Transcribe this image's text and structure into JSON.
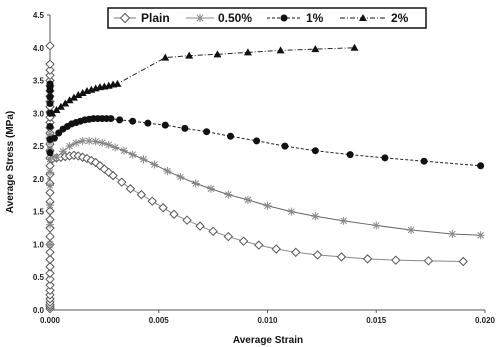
{
  "chart_data": {
    "type": "scatter",
    "title": "",
    "xlabel": "Average Strain",
    "ylabel": "Average Stress (MPa)",
    "xlim": [
      0,
      0.02
    ],
    "ylim": [
      0,
      4.5
    ],
    "xticks": [
      "0.000",
      "0.005",
      "0.010",
      "0.015",
      "0.020"
    ],
    "yticks": [
      "0.0",
      "0.5",
      "1.0",
      "1.5",
      "2.0",
      "2.5",
      "3.0",
      "3.5",
      "4.0",
      "4.5"
    ],
    "grid": false,
    "legend_position": "top",
    "series": [
      {
        "name": "Plain",
        "marker": "diamond-open",
        "color": "#555555",
        "x": [
          0,
          0,
          0,
          0,
          0,
          0,
          0,
          0,
          0,
          0,
          0,
          0,
          0,
          0,
          0,
          0,
          0,
          0,
          0,
          0,
          0,
          0,
          0,
          0,
          0,
          0,
          0,
          0,
          0,
          0,
          0,
          0,
          0,
          0,
          0,
          0,
          0,
          0,
          0,
          0,
          0,
          0,
          0.0001,
          0.0003,
          0.0005,
          0.0007,
          0.0009,
          0.0011,
          0.0013,
          0.0015,
          0.0017,
          0.0019,
          0.0021,
          0.0023,
          0.0025,
          0.0027,
          0.0029,
          0.0033,
          0.0037,
          0.0042,
          0.0047,
          0.0052,
          0.0057,
          0.0063,
          0.0069,
          0.0075,
          0.0082,
          0.0089,
          0.0096,
          0.0104,
          0.0113,
          0.0123,
          0.0134,
          0.0146,
          0.0159,
          0.0174,
          0.019
        ],
        "y": [
          0.02,
          0.05,
          0.08,
          0.12,
          0.17,
          0.23,
          0.3,
          0.38,
          0.47,
          0.56,
          0.66,
          0.77,
          0.88,
          1.0,
          1.12,
          1.25,
          1.38,
          1.51,
          1.65,
          1.79,
          1.93,
          2.07,
          2.2,
          2.32,
          2.43,
          2.53,
          2.62,
          2.7,
          2.78,
          2.86,
          2.94,
          3.02,
          3.1,
          3.18,
          3.26,
          3.34,
          3.42,
          3.5,
          3.58,
          3.66,
          3.75,
          4.03,
          2.3,
          2.32,
          2.33,
          2.34,
          2.35,
          2.36,
          2.35,
          2.33,
          2.31,
          2.28,
          2.25,
          2.2,
          2.15,
          2.1,
          2.05,
          1.95,
          1.85,
          1.76,
          1.66,
          1.56,
          1.46,
          1.37,
          1.28,
          1.2,
          1.12,
          1.05,
          0.99,
          0.93,
          0.88,
          0.84,
          0.81,
          0.78,
          0.76,
          0.75,
          0.74
        ]
      },
      {
        "name": "0.50%",
        "marker": "star",
        "color": "#888888",
        "x": [
          0,
          0,
          0,
          0,
          0,
          0,
          0,
          0,
          0,
          0,
          0.0003,
          0.0006,
          0.0009,
          0.0012,
          0.0015,
          0.0018,
          0.0021,
          0.0024,
          0.0027,
          0.003,
          0.0034,
          0.0038,
          0.0043,
          0.0048,
          0.0054,
          0.006,
          0.0067,
          0.0074,
          0.0082,
          0.0091,
          0.01,
          0.0111,
          0.0122,
          0.0135,
          0.015,
          0.0166,
          0.0185,
          0.0198
        ],
        "y": [
          1.0,
          1.3,
          1.6,
          1.9,
          2.1,
          2.3,
          2.45,
          2.55,
          2.62,
          2.68,
          2.33,
          2.42,
          2.5,
          2.55,
          2.58,
          2.58,
          2.57,
          2.55,
          2.52,
          2.48,
          2.43,
          2.37,
          2.3,
          2.22,
          2.12,
          2.03,
          1.93,
          1.85,
          1.76,
          1.68,
          1.59,
          1.5,
          1.43,
          1.36,
          1.29,
          1.22,
          1.16,
          1.14
        ]
      },
      {
        "name": "1%",
        "marker": "circle-filled",
        "color": "#111111",
        "x": [
          0,
          0,
          0,
          0,
          0,
          0,
          0,
          0,
          0,
          0.0002,
          0.0004,
          0.0006,
          0.0008,
          0.001,
          0.0012,
          0.0014,
          0.0016,
          0.0018,
          0.002,
          0.0022,
          0.0024,
          0.0026,
          0.0028,
          0.0032,
          0.0038,
          0.0045,
          0.0053,
          0.0062,
          0.0072,
          0.0083,
          0.0095,
          0.0108,
          0.0122,
          0.0138,
          0.0154,
          0.0172,
          0.0198
        ],
        "y": [
          2.4,
          2.6,
          2.8,
          3.0,
          3.15,
          3.25,
          3.35,
          3.4,
          3.45,
          2.62,
          2.7,
          2.76,
          2.8,
          2.84,
          2.86,
          2.88,
          2.9,
          2.91,
          2.92,
          2.92,
          2.92,
          2.92,
          2.92,
          2.9,
          2.88,
          2.85,
          2.82,
          2.77,
          2.72,
          2.65,
          2.58,
          2.5,
          2.43,
          2.37,
          2.32,
          2.27,
          2.2
        ]
      },
      {
        "name": "2%",
        "marker": "triangle-filled",
        "color": "#111111",
        "x": [
          0.0001,
          0.0003,
          0.0005,
          0.0007,
          0.0009,
          0.0011,
          0.0013,
          0.0015,
          0.0017,
          0.0019,
          0.0021,
          0.0023,
          0.0025,
          0.0027,
          0.0029,
          0.0031,
          0.0053,
          0.0064,
          0.0077,
          0.0091,
          0.0106,
          0.0122,
          0.014
        ],
        "y": [
          3.0,
          3.05,
          3.1,
          3.15,
          3.2,
          3.24,
          3.28,
          3.31,
          3.34,
          3.36,
          3.38,
          3.4,
          3.41,
          3.42,
          3.44,
          3.45,
          3.85,
          3.88,
          3.9,
          3.93,
          3.96,
          3.98,
          4.0
        ]
      }
    ]
  }
}
